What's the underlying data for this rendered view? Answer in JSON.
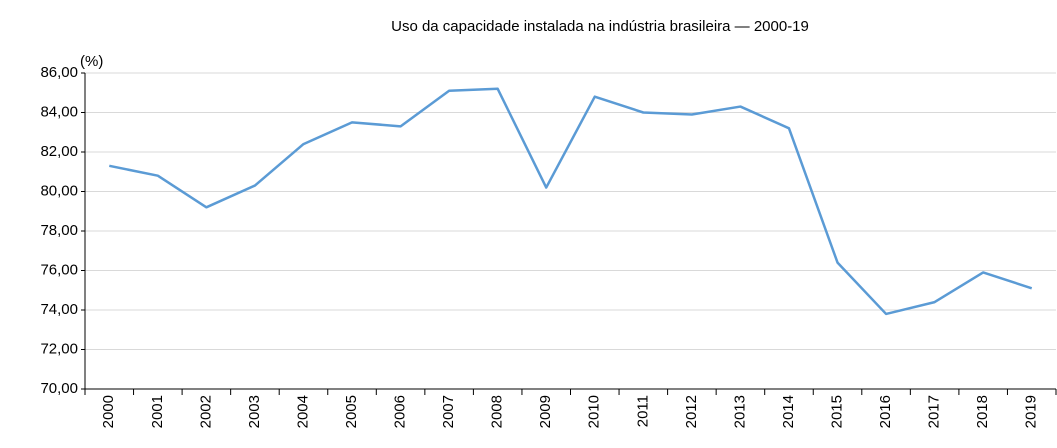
{
  "chart_data": {
    "type": "line",
    "title": "Uso da capacidade instalada na indústria brasileira — 2000-19",
    "y_unit_label": "(%)",
    "categories": [
      "2000",
      "2001",
      "2002",
      "2003",
      "2004",
      "2005",
      "2006",
      "2007",
      "2008",
      "2009",
      "2010",
      "2011",
      "2012",
      "2013",
      "2014",
      "2015",
      "2016",
      "2017",
      "2018",
      "2019"
    ],
    "series": [
      {
        "color": "#5b9bd5",
        "values": [
          81.3,
          80.8,
          79.2,
          80.3,
          82.4,
          83.5,
          83.3,
          85.1,
          85.2,
          80.2,
          84.8,
          84.0,
          83.9,
          84.3,
          83.2,
          76.4,
          73.8,
          74.4,
          75.9,
          75.1
        ]
      }
    ],
    "ylim": [
      70,
      86
    ],
    "yticks": [
      {
        "value": 70,
        "label": "70,00"
      },
      {
        "value": 72,
        "label": "72,00"
      },
      {
        "value": 74,
        "label": "74,00"
      },
      {
        "value": 76,
        "label": "76,00"
      },
      {
        "value": 78,
        "label": "78,00"
      },
      {
        "value": 80,
        "label": "80,00"
      },
      {
        "value": 82,
        "label": "82,00"
      },
      {
        "value": 84,
        "label": "84,00"
      },
      {
        "value": 86,
        "label": "86,00"
      }
    ],
    "grid": true
  }
}
